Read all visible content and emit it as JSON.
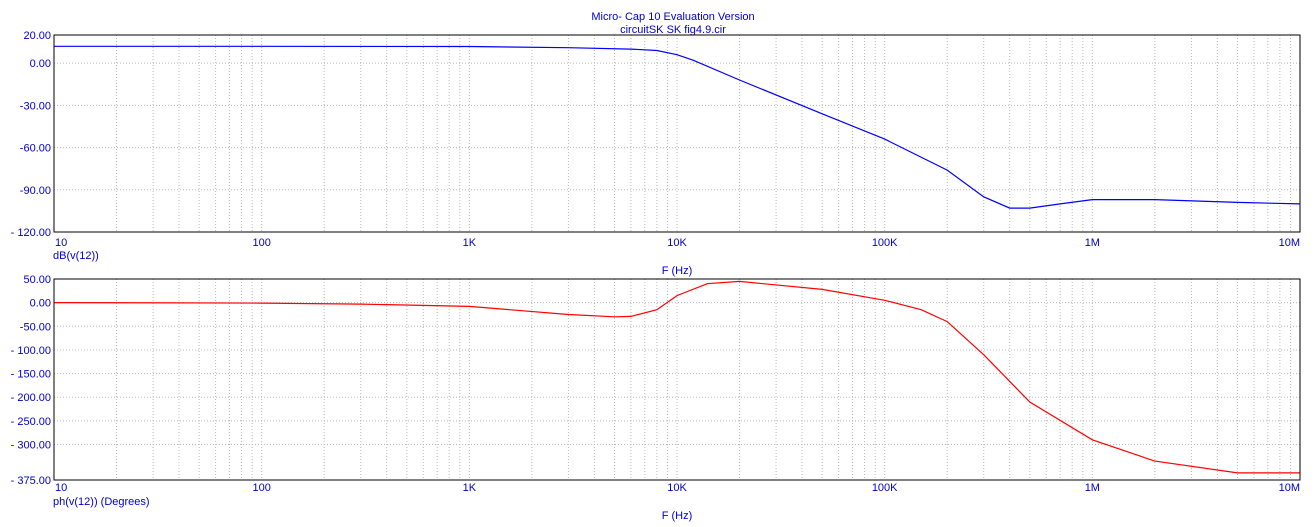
{
  "header": {
    "title": "Micro- Cap 10 Evaluation Version",
    "subtitle": "circuitSK SK fig4.9.cir"
  },
  "chart_data": [
    {
      "type": "line",
      "xscale": "log",
      "xlim": [
        10,
        10000000
      ],
      "ylim": [
        -120,
        20
      ],
      "xticks": [
        "10",
        "100",
        "1K",
        "10K",
        "100K",
        "1M",
        "10M"
      ],
      "xtick_values": [
        10,
        100,
        1000,
        10000,
        100000,
        1000000,
        10000000
      ],
      "yticks": [
        "20.00",
        "0.00",
        "-30.00",
        "-60.00",
        "-90.00",
        "- 120.00"
      ],
      "ytick_values": [
        20,
        0,
        -30,
        -60,
        -90,
        -120
      ],
      "xlabel": "F (Hz)",
      "ylabel": "dB(v(12))",
      "grid": true,
      "series": [
        {
          "name": "dB(v(12))",
          "color": "#0000ff",
          "x": [
            10,
            100,
            1000,
            3000,
            6000,
            8000,
            10000,
            12000,
            20000,
            50000,
            100000,
            200000,
            300000,
            400000,
            500000,
            700000,
            1000000,
            2000000,
            5000000,
            10000000
          ],
          "y": [
            12,
            12,
            11.8,
            11,
            10,
            9,
            6,
            2,
            -12,
            -36,
            -54,
            -76,
            -95,
            -103,
            -103,
            -100,
            -97,
            -97,
            -99,
            -100
          ]
        }
      ]
    },
    {
      "type": "line",
      "xscale": "log",
      "xlim": [
        10,
        10000000
      ],
      "ylim": [
        -375,
        50
      ],
      "xticks": [
        "10",
        "100",
        "1K",
        "10K",
        "100K",
        "1M",
        "10M"
      ],
      "xtick_values": [
        10,
        100,
        1000,
        10000,
        100000,
        1000000,
        10000000
      ],
      "yticks": [
        "50.00",
        "0.00",
        "-50.00",
        "- 100.00",
        "- 150.00",
        "- 200.00",
        "- 250.00",
        "- 300.00",
        "- 375.00"
      ],
      "ytick_values": [
        50,
        0,
        -50,
        -100,
        -150,
        -200,
        -250,
        -300,
        -375
      ],
      "xlabel": "F (Hz)",
      "ylabel": "ph(v(12)) (Degrees)",
      "grid": true,
      "series": [
        {
          "name": "ph(v(12)) (Degrees)",
          "color": "#ff0000",
          "x": [
            10,
            100,
            300,
            1000,
            3000,
            5000,
            6000,
            8000,
            10000,
            14000,
            20000,
            50000,
            100000,
            150000,
            200000,
            300000,
            500000,
            1000000,
            2000000,
            5000000,
            10000000
          ],
          "y": [
            0,
            -1,
            -3,
            -8,
            -25,
            -30,
            -29,
            -15,
            15,
            40,
            45,
            28,
            5,
            -15,
            -40,
            -110,
            -210,
            -290,
            -335,
            -360,
            -360
          ]
        }
      ]
    }
  ]
}
